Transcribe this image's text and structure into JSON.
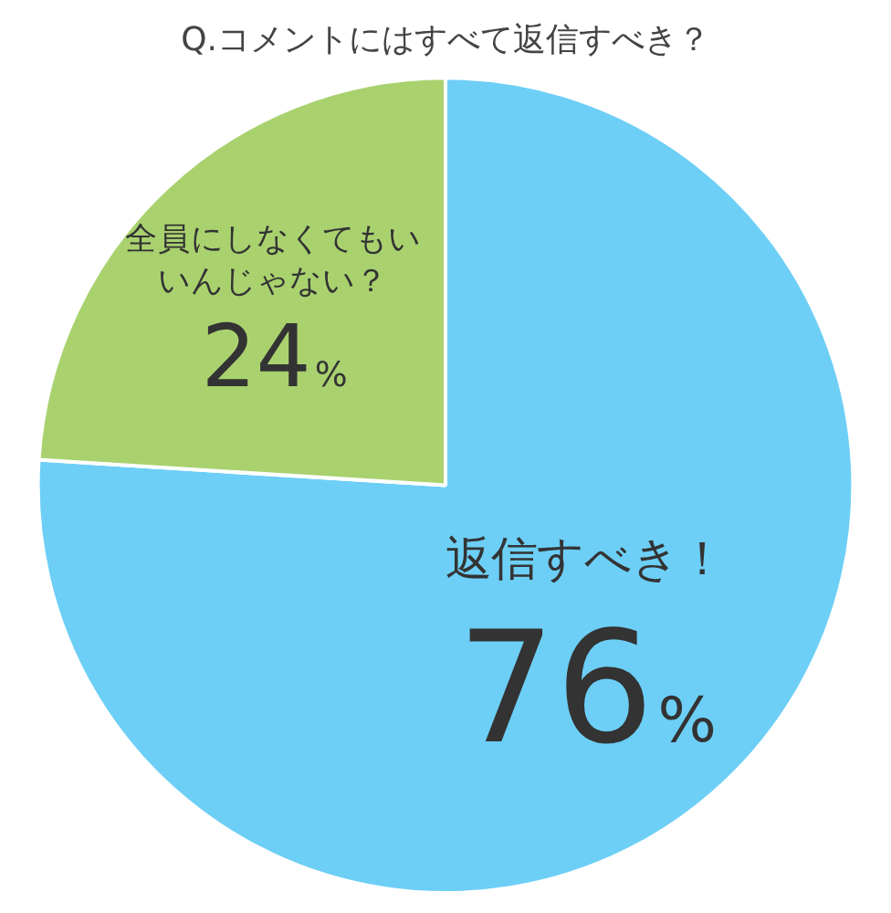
{
  "chart_data": {
    "type": "pie",
    "title": "Q.コメントにはすべて返信すべき？",
    "categories": [
      "返信すべき！",
      "全員にしなくてもいいんじゃない？"
    ],
    "values": [
      76,
      24
    ],
    "colors": [
      "#6dcff6",
      "#a9d26f"
    ],
    "value_labels": [
      "76%",
      "24%"
    ],
    "legend": false
  }
}
